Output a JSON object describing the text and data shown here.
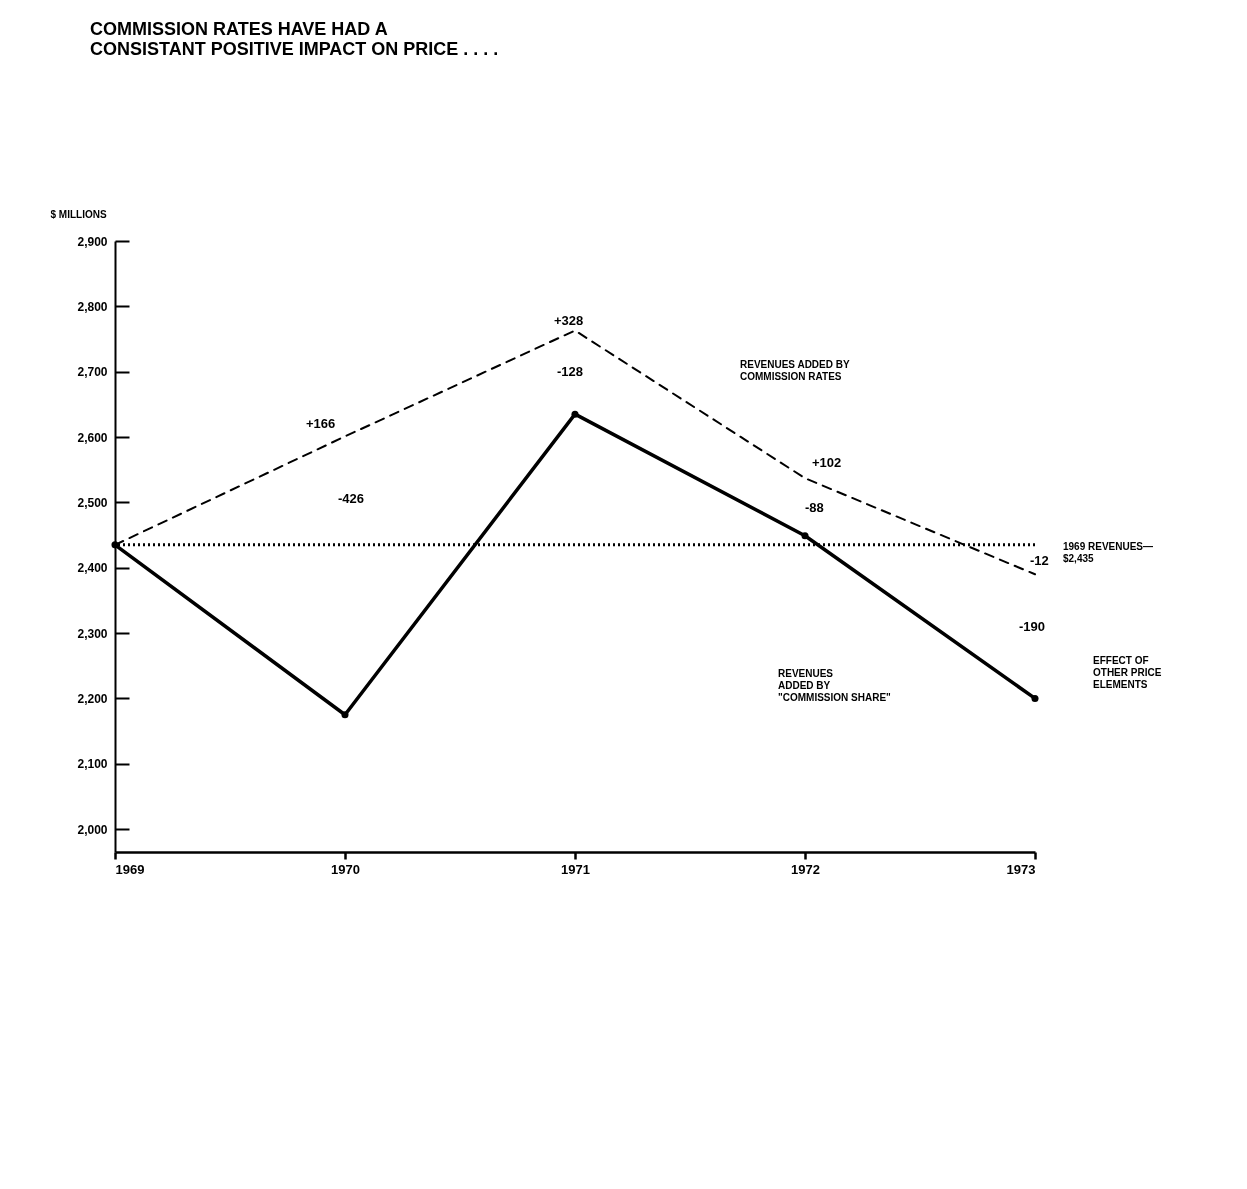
{
  "chart_data": {
    "type": "line",
    "title": "COMMISSION RATES HAVE HAD A\nCONSISTANT POSITIVE IMPACT ON PRICE . . . .",
    "ylabel": "$ MILLIONS",
    "x": [
      1969,
      1970,
      1971,
      1972,
      1973
    ],
    "series": [
      {
        "color": "#000000",
        "line_style": "dashed",
        "marker": "none",
        "values": [
          2435,
          2601,
          2763,
          2537,
          2390
        ]
      },
      {
        "color": "#000000",
        "line_style": "solid",
        "marker": "circle",
        "values": [
          2435,
          2175,
          2635,
          2449,
          2200
        ]
      }
    ],
    "xlim": [
      1969,
      1973
    ],
    "xticks": [
      1969,
      1970,
      1971,
      1972,
      1973
    ],
    "ylim": [
      1965,
      2900
    ],
    "yticks": [
      {
        "value": 2000,
        "label": "2,000"
      },
      {
        "value": 2100,
        "label": "2,100"
      },
      {
        "value": 2200,
        "label": "2,200"
      },
      {
        "value": 2300,
        "label": "2,300"
      },
      {
        "value": 2400,
        "label": "2,400"
      },
      {
        "value": 2500,
        "label": "2,500"
      },
      {
        "value": 2600,
        "label": "2,600"
      },
      {
        "value": 2700,
        "label": "2,700"
      },
      {
        "value": 2800,
        "label": "2,800"
      },
      {
        "value": 2900,
        "label": "2,900"
      }
    ],
    "ref_lines": [
      {
        "axis": "y",
        "value": 2435,
        "label": "1969 REVENUES—\n$2,435",
        "color": "#000000",
        "line_style": "dotted"
      }
    ],
    "annotations": [
      "+166",
      "-426",
      "+328",
      "-128",
      "+102",
      "-88",
      "-12",
      "-190",
      "REVENUES ADDED BY\nCOMMISSION RATES",
      "REVENUES\nADDED BY\n\"COMMISSION SHARE\"",
      "EFFECT OF\nOTHER PRICE\nELEMENTS"
    ],
    "grid": false
  }
}
